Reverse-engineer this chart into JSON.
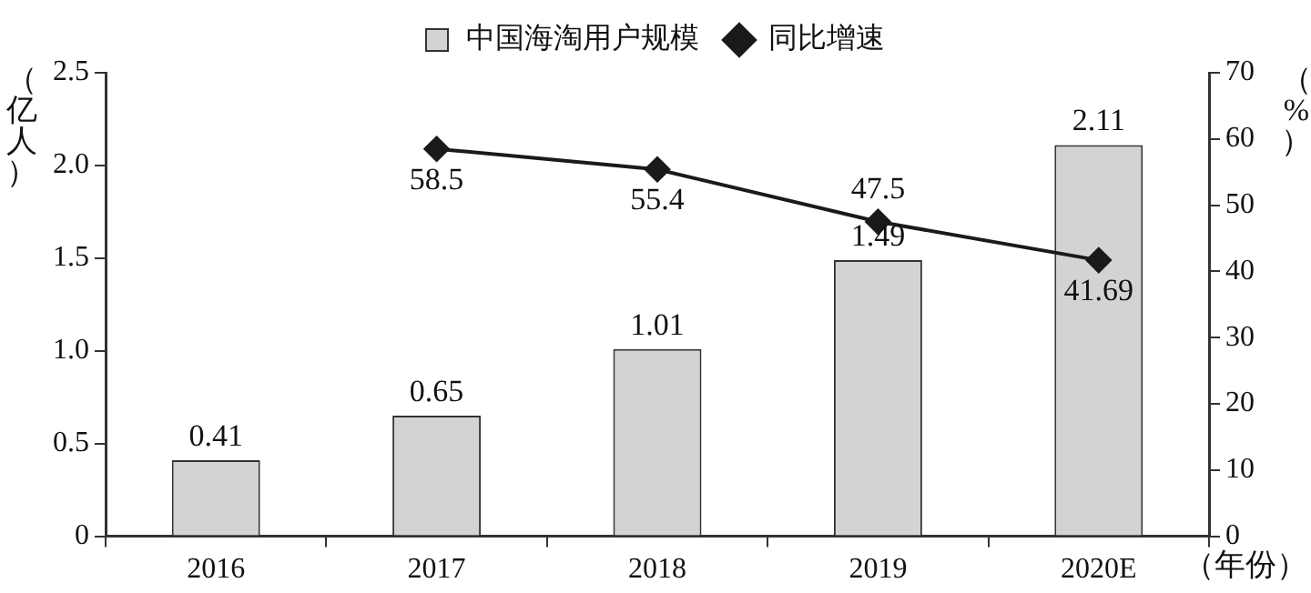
{
  "chart_data": {
    "type": "bar",
    "categories": [
      "2016",
      "2017",
      "2018",
      "2019",
      "2020E"
    ],
    "series": [
      {
        "name": "中国海淘用户规模",
        "color": "#d3d3d3",
        "values": [
          0.41,
          0.65,
          1.01,
          1.49,
          2.11
        ]
      },
      {
        "name": "同比增速",
        "type": "line",
        "axis": "y2",
        "color": "#1a1a1a",
        "marker": "diamond",
        "values": [
          null,
          58.5,
          55.4,
          47.5,
          41.69
        ]
      }
    ],
    "ylabel": "（亿人）",
    "y2label": "（%）",
    "xlabel": "（年份）",
    "ylim": [
      0,
      2.5
    ],
    "yticks": [
      0,
      0.5,
      {
        "value": 1,
        "label": "1.0"
      },
      1.5,
      {
        "value": 2,
        "label": "2.0"
      },
      2.5
    ],
    "y2lim": [
      0,
      70
    ],
    "y2ticks": [
      0,
      10,
      20,
      30,
      40,
      50,
      60,
      70
    ],
    "data_labels": true,
    "grid": false,
    "legend": "top"
  }
}
